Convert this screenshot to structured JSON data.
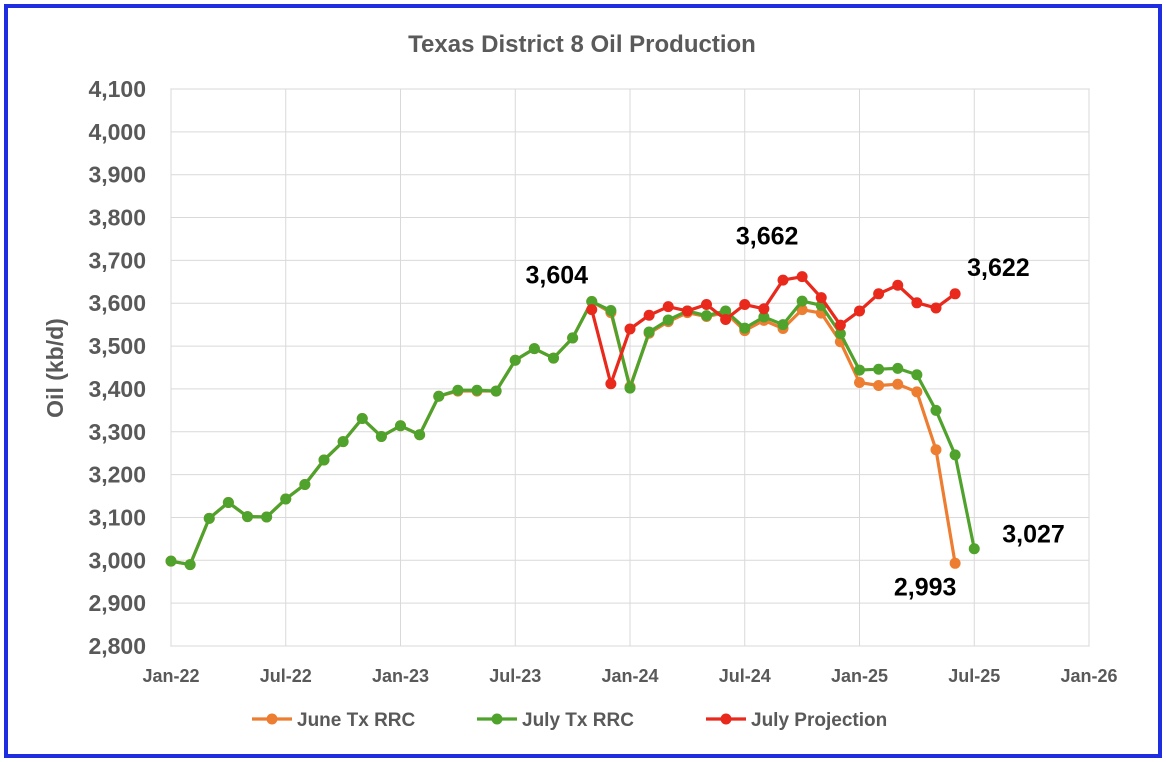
{
  "chart_data": {
    "type": "line",
    "title": "Texas District 8 Oil Production",
    "ylabel": "Oil (kb/d)",
    "xlabel": "",
    "ylim": [
      2800,
      4100
    ],
    "ytick_step": 100,
    "ytick_labels": [
      "2,800",
      "2,900",
      "3,000",
      "3,100",
      "3,200",
      "3,300",
      "3,400",
      "3,500",
      "3,600",
      "3,700",
      "3,800",
      "3,900",
      "4,000",
      "4,100"
    ],
    "xticks": [
      "Jan-22",
      "Jul-22",
      "Jan-23",
      "Jul-23",
      "Jan-24",
      "Jul-24",
      "Jan-25",
      "Jul-25",
      "Jan-26"
    ],
    "grid": true,
    "legend_position": "bottom",
    "series": [
      {
        "name": "June Tx RRC",
        "color": "#ed7d31",
        "start": "Jan-22",
        "values": [
          2998,
          2990,
          3098,
          3135,
          3102,
          3101,
          3143,
          3177,
          3234,
          3277,
          3331,
          3289,
          3314,
          3293,
          3383,
          3395,
          3395,
          3395,
          3467,
          3494,
          3472,
          3519,
          3604,
          3578,
          3405,
          3530,
          3557,
          3578,
          3569,
          3578,
          3536,
          3560,
          3541,
          3585,
          3577,
          3510,
          3415,
          3408,
          3411,
          3393,
          3258,
          2993
        ]
      },
      {
        "name": "July Tx RRC",
        "color": "#4fa22b",
        "start": "Jan-22",
        "values": [
          2998,
          2990,
          3098,
          3135,
          3102,
          3101,
          3143,
          3177,
          3234,
          3277,
          3331,
          3289,
          3314,
          3293,
          3383,
          3397,
          3397,
          3395,
          3467,
          3494,
          3472,
          3519,
          3604,
          3583,
          3402,
          3533,
          3561,
          3582,
          3571,
          3582,
          3542,
          3568,
          3550,
          3605,
          3595,
          3529,
          3444,
          3446,
          3448,
          3433,
          3350,
          3246,
          3027
        ]
      },
      {
        "name": "July Projection",
        "color": "#e8291c",
        "start": "Nov-23",
        "values": [
          3585,
          3412,
          3540,
          3572,
          3592,
          3582,
          3597,
          3562,
          3597,
          3587,
          3654,
          3662,
          3613,
          3549,
          3582,
          3622,
          3642,
          3601,
          3589,
          3622
        ]
      }
    ],
    "annotations": [
      {
        "text": "3,604",
        "series": 1,
        "index": 22
      },
      {
        "text": "3,662",
        "series": 2,
        "index": 11
      },
      {
        "text": "3,622",
        "series": 2,
        "index": 19
      },
      {
        "text": "2,993",
        "series": 0,
        "index": 41
      },
      {
        "text": "3,027",
        "series": 1,
        "index": 42
      }
    ]
  }
}
